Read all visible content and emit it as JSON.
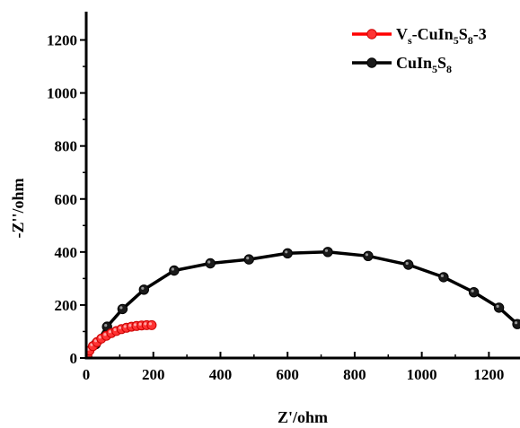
{
  "chart_data": {
    "type": "line",
    "xlabel": "Z'/ohm",
    "ylabel": "-Z''/ohm",
    "xlim": [
      0,
      1290
    ],
    "ylim": [
      0,
      1300
    ],
    "xticks": [
      "0",
      "200",
      "400",
      "600",
      "800",
      "1000",
      "1200"
    ],
    "yticks": [
      "0",
      "200",
      "400",
      "600",
      "800",
      "1000",
      "1200"
    ],
    "grid": false,
    "legend_position": "top-right",
    "series": [
      {
        "name": "V_s-CuIn_5S_8-3",
        "legend_parts": [
          "V",
          "s",
          "-CuIn",
          "5",
          "S",
          "8",
          "-3"
        ],
        "color": "#ff0000",
        "marker_fill": "#ff3333",
        "x": [
          3,
          10,
          20,
          32,
          45,
          60,
          75,
          90,
          105,
          120,
          135,
          150,
          165,
          180,
          195
        ],
        "y": [
          10,
          28,
          45,
          60,
          73,
          84,
          94,
          102,
          109,
          114,
          118,
          121,
          123,
          124,
          124
        ]
      },
      {
        "name": "CuIn_5S_8",
        "legend_parts": [
          "CuIn",
          "5",
          "S",
          "8"
        ],
        "color": "#000000",
        "marker_fill": "#1a1a1a",
        "x": [
          3,
          28,
          62,
          108,
          172,
          262,
          370,
          485,
          600,
          720,
          840,
          960,
          1065,
          1155,
          1230,
          1285
        ],
        "y": [
          5,
          52,
          118,
          185,
          258,
          330,
          357,
          372,
          395,
          400,
          385,
          352,
          305,
          248,
          190,
          128
        ]
      }
    ]
  }
}
